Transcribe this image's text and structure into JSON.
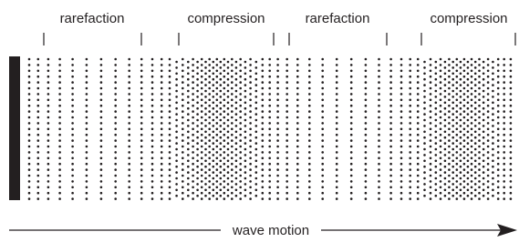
{
  "regions": [
    "rarefaction",
    "compression",
    "rarefaction",
    "compression"
  ],
  "arrow_label": "wave motion"
}
